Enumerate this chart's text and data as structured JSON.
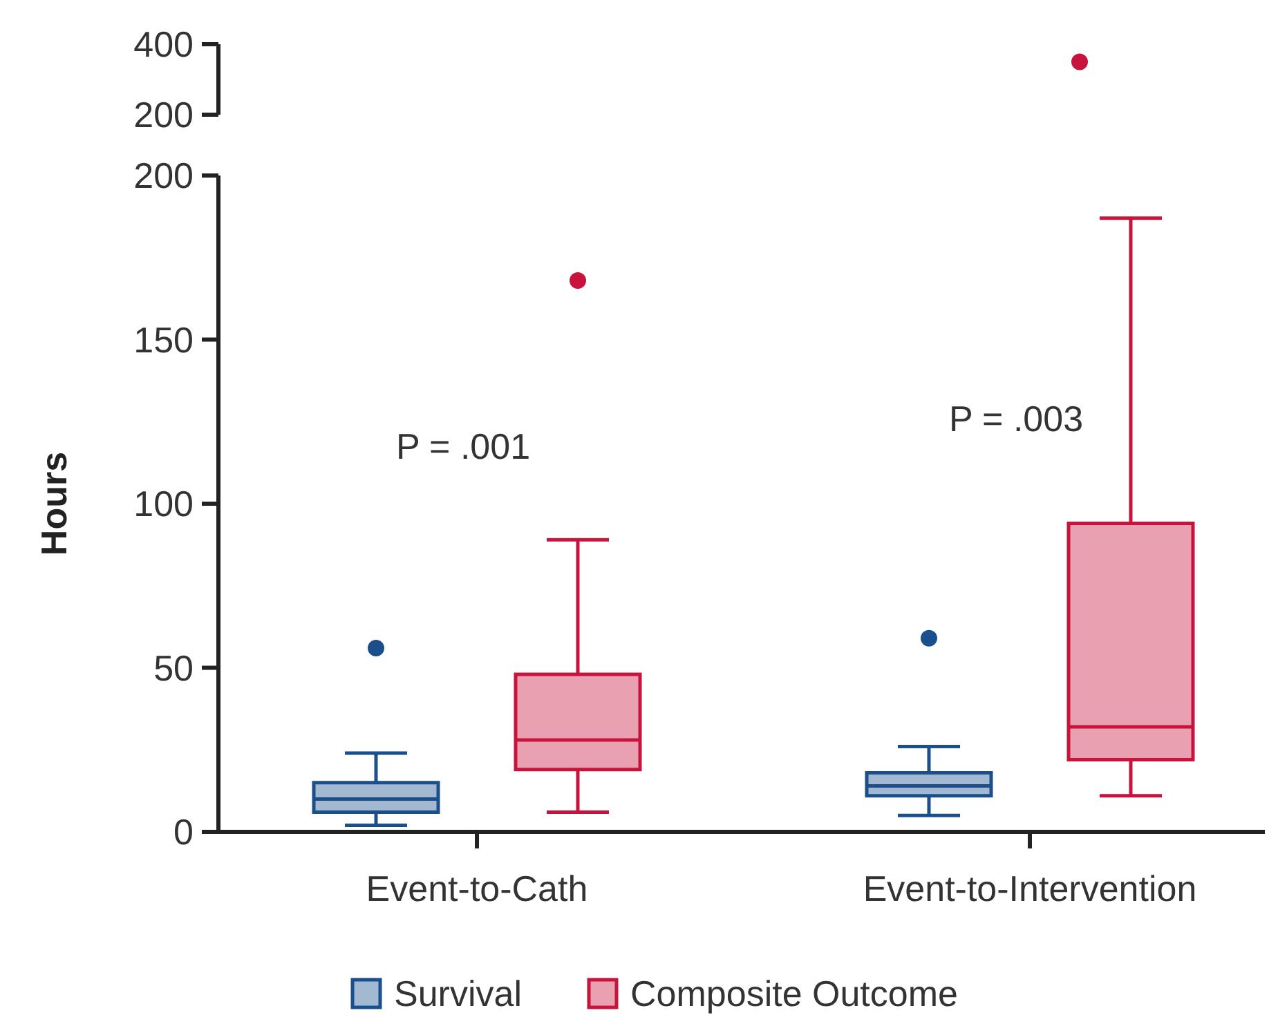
{
  "chart_data": [
    {
      "type": "scatter",
      "categories": [
        "Event-to-Cath",
        "Event-to-Intervention"
      ],
      "ylim": [
        200,
        400
      ],
      "yticks": [
        200,
        400
      ],
      "tick_labels": "y",
      "marker": "circle",
      "series": [
        {
          "color": "#c8143c",
          "x": [
            "Event-to-Intervention"
          ],
          "values": [
            350
          ]
        }
      ]
    },
    {
      "type": "box",
      "ylabel": "Hours",
      "categories": [
        "Event-to-Cath",
        "Event-to-Intervention"
      ],
      "ylim": [
        0,
        200
      ],
      "yticks": [
        0,
        50,
        100,
        150,
        200
      ],
      "legend": "bottom",
      "annotations": [
        "P = .001",
        "P = .003"
      ],
      "series": [
        {
          "name": "Survival",
          "color": "#1a4f8b",
          "boxes": [
            {
              "low": 2,
              "q1": 6,
              "median": 10,
              "q3": 15,
              "high": 24,
              "outliers": [
                56
              ]
            },
            {
              "low": 5,
              "q1": 11,
              "median": 14,
              "q3": 18,
              "high": 26,
              "outliers": [
                59
              ]
            }
          ]
        },
        {
          "name": "Composite Outcome",
          "color": "#c8143c",
          "boxes": [
            {
              "low": 6,
              "q1": 19,
              "median": 28,
              "q3": 48,
              "high": 89,
              "outliers": [
                168
              ]
            },
            {
              "low": 11,
              "q1": 22,
              "median": 32,
              "q3": 94,
              "high": 187
            }
          ]
        }
      ]
    }
  ]
}
